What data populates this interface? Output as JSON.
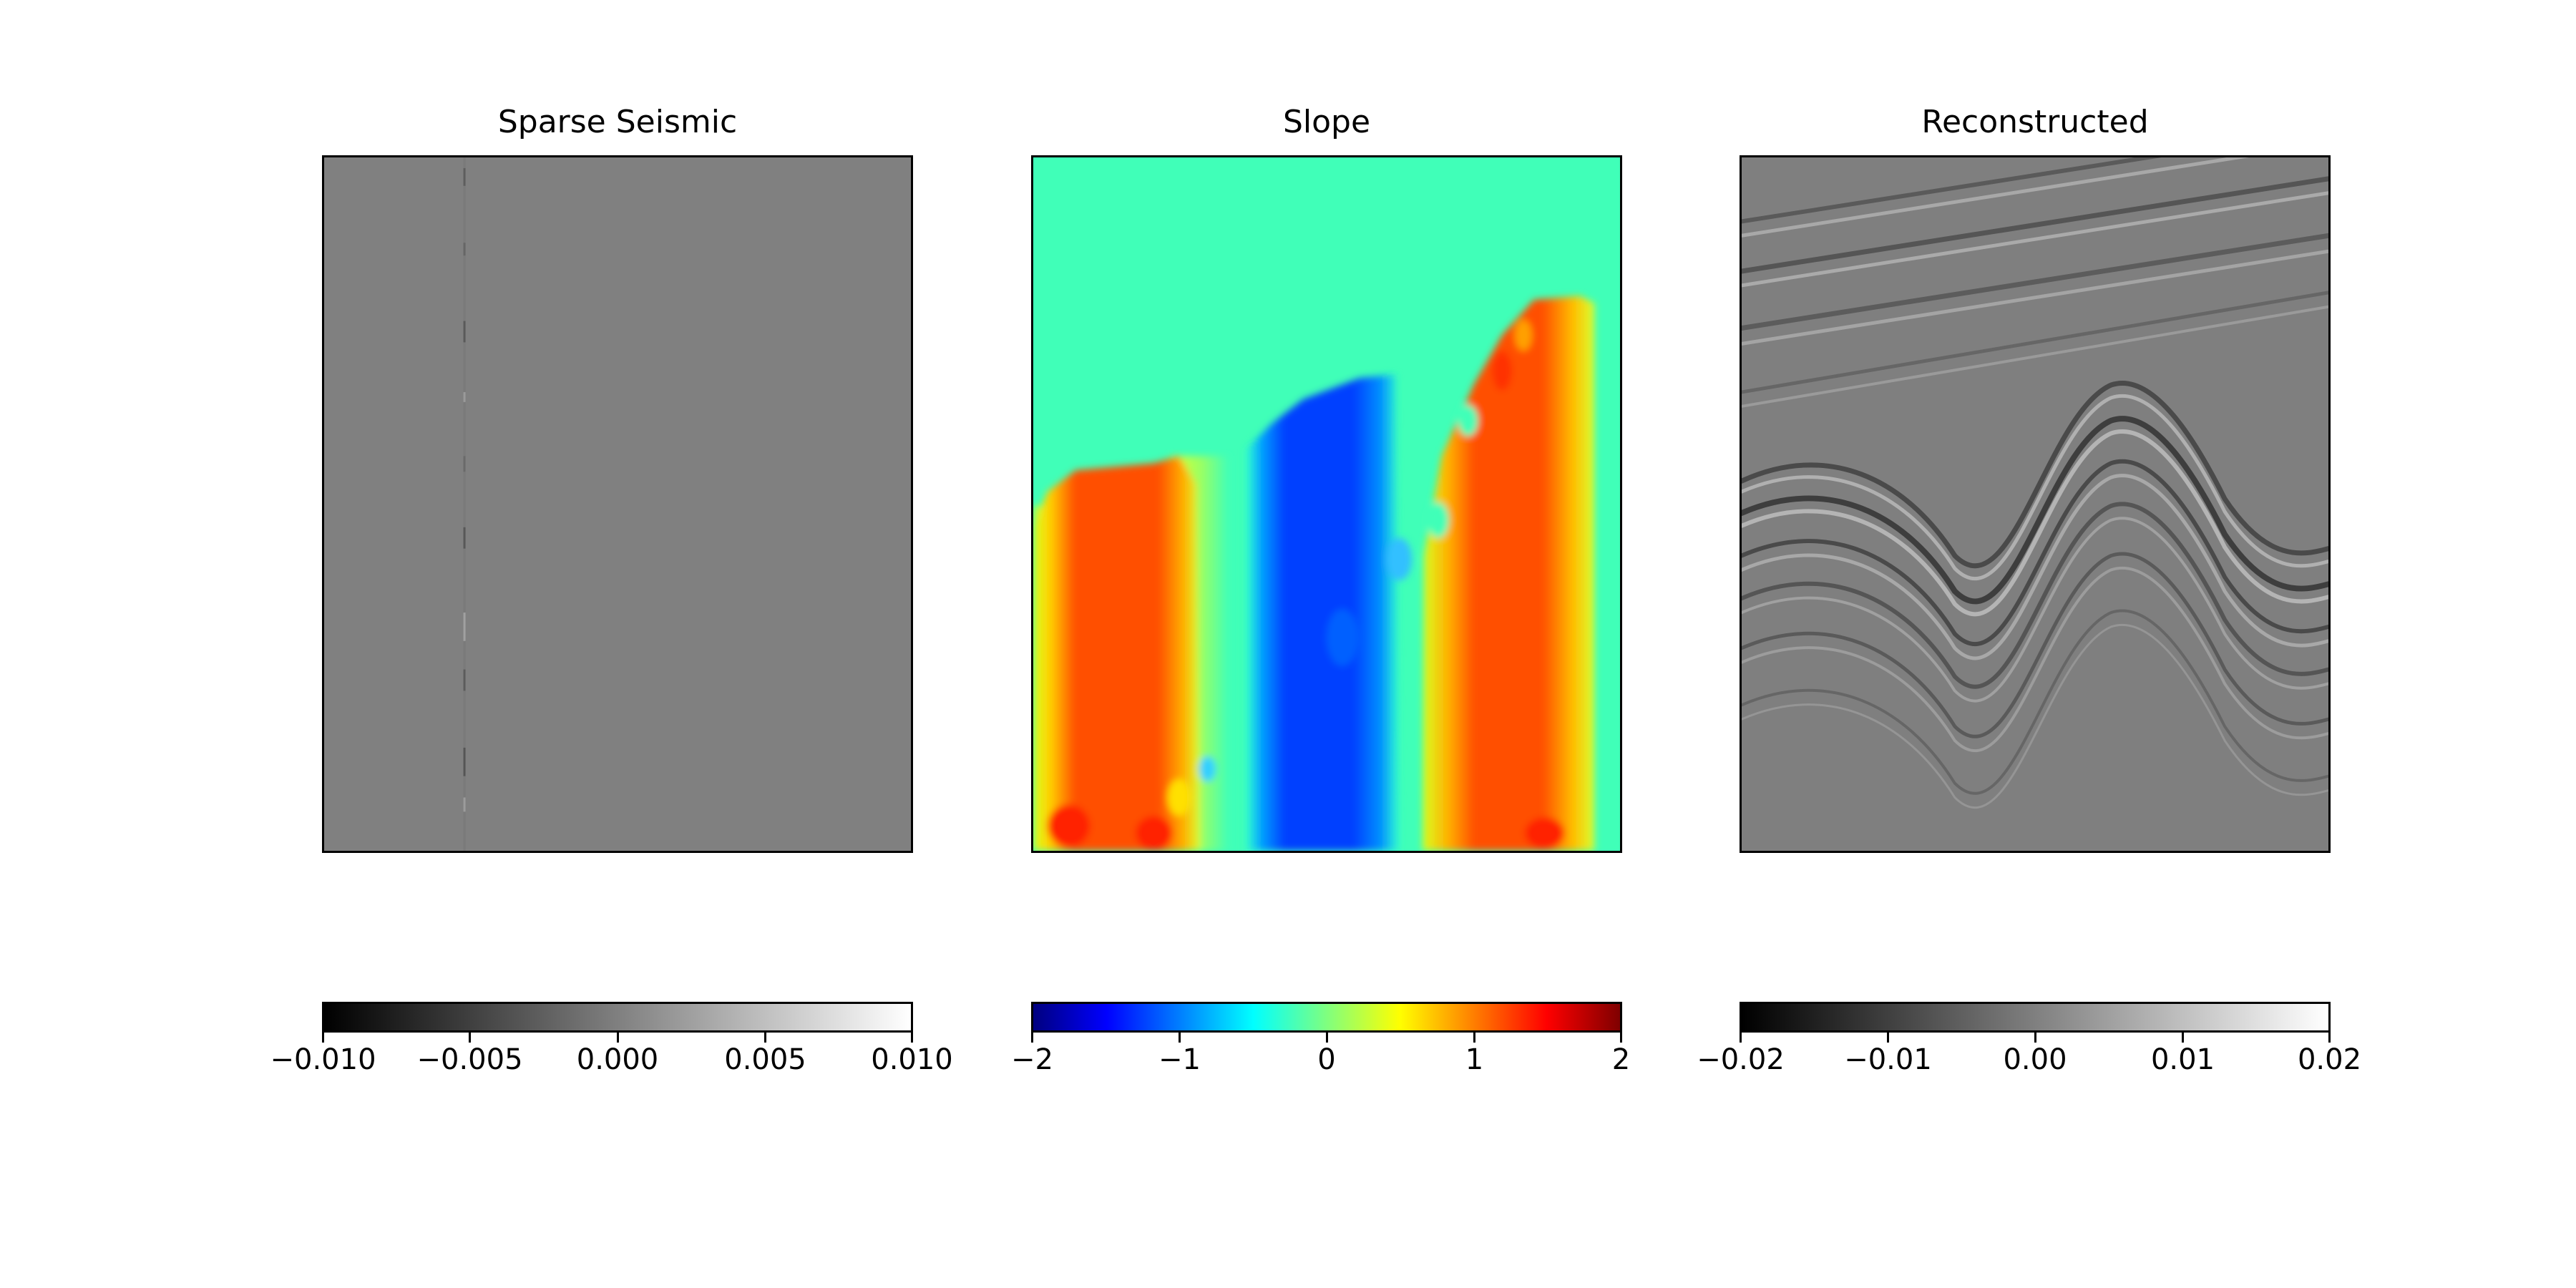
{
  "chart_data": [
    {
      "type": "heatmap",
      "title": "Sparse Seismic",
      "colormap": "gray",
      "colorbar": {
        "orientation": "horizontal",
        "range": [
          -0.01,
          0.01
        ],
        "ticks": [
          -0.01,
          -0.005,
          0.0,
          0.005,
          0.01
        ],
        "tick_labels": [
          "−0.010",
          "−0.005",
          "0.000",
          "0.005",
          "0.010"
        ]
      },
      "description_values": {
        "background": 0.0,
        "trace_fraction": 0.24
      }
    },
    {
      "type": "heatmap",
      "title": "Slope",
      "colormap": "jet",
      "colorbar": {
        "orientation": "horizontal",
        "range": [
          -2,
          2
        ],
        "ticks": [
          -2,
          -1,
          0,
          1,
          2
        ],
        "tick_labels": [
          "−2",
          "−1",
          "0",
          "1",
          "2"
        ]
      },
      "regions": [
        {
          "name": "upper",
          "value": 0.0
        },
        {
          "name": "left",
          "value": 1.5
        },
        {
          "name": "middle",
          "value": -1.5
        },
        {
          "name": "right",
          "value": 1.5
        }
      ]
    },
    {
      "type": "heatmap",
      "title": "Reconstructed",
      "colormap": "gray",
      "colorbar": {
        "orientation": "horizontal",
        "range": [
          -0.02,
          0.02
        ],
        "ticks": [
          -0.02,
          -0.01,
          0.0,
          0.01,
          0.02
        ],
        "tick_labels": [
          "−0.02",
          "−0.01",
          "0.00",
          "0.01",
          "0.02"
        ]
      }
    }
  ],
  "colors": {
    "gray_mid": "#808080",
    "jet_stops": [
      "#00007f",
      "#0000ff",
      "#007fff",
      "#00ffff",
      "#7fff7f",
      "#ffff00",
      "#ff7f00",
      "#ff0000",
      "#7f0000"
    ]
  }
}
